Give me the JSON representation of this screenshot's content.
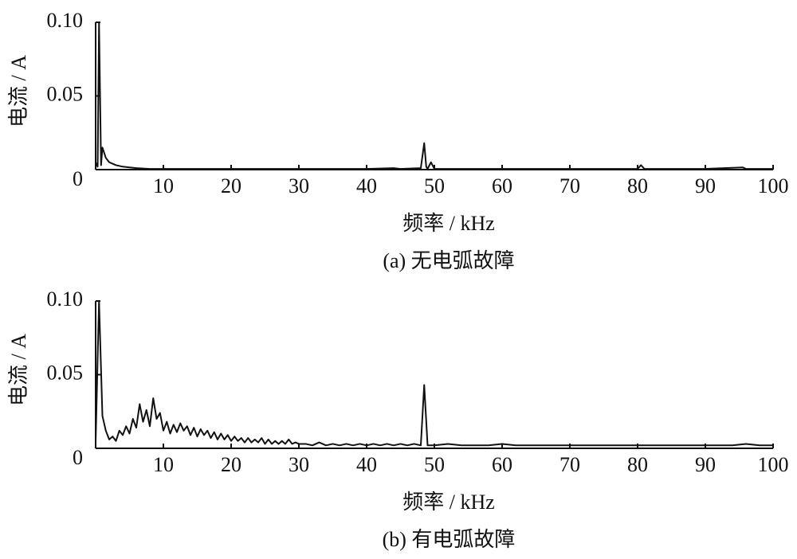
{
  "chart_data": [
    {
      "type": "line",
      "caption": "(a) 无电弧故障",
      "x_label": "频率 / kHz",
      "y_label": "电流 / A",
      "color": "#111111",
      "xlim": [
        0,
        100
      ],
      "ylim": [
        0,
        0.1
      ],
      "xticks": [
        10,
        20,
        30,
        40,
        50,
        60,
        70,
        80,
        90,
        100
      ],
      "yticks": [
        0,
        0.05,
        {
          "value": 0.1,
          "label": "0.10"
        }
      ],
      "x": [
        0,
        0.3,
        0.5,
        0.8,
        1,
        1.5,
        2,
        2.5,
        3,
        4,
        5,
        6,
        8,
        10,
        15,
        20,
        30,
        40,
        44,
        45,
        48,
        48.5,
        48.8,
        49,
        49.5,
        50,
        60,
        70,
        80,
        80.5,
        81,
        90,
        95.5,
        96,
        100
      ],
      "values": [
        0.005,
        0.002,
        0.1,
        0.003,
        0.015,
        0.008,
        0.005,
        0.004,
        0.003,
        0.002,
        0.0015,
        0.001,
        0.0005,
        0.0005,
        0.0005,
        0.0005,
        0.0005,
        0.0005,
        0.001,
        0.0005,
        0.001,
        0.018,
        0.002,
        0.0005,
        0.005,
        0.0005,
        0.0005,
        0.0005,
        0.0005,
        0.003,
        0.0005,
        0.0005,
        0.0015,
        0.0005,
        0.0005
      ]
    },
    {
      "type": "line",
      "caption": "(b) 有电弧故障",
      "x_label": "频率 / kHz",
      "y_label": "电流 / A",
      "color": "#111111",
      "xlim": [
        0,
        100
      ],
      "ylim": [
        0,
        0.1
      ],
      "xticks": [
        10,
        20,
        30,
        40,
        50,
        60,
        70,
        80,
        90,
        100
      ],
      "yticks": [
        0,
        0.05,
        {
          "value": 0.1,
          "label": "0.10"
        }
      ],
      "x": [
        0,
        0.5,
        1,
        1.5,
        2,
        2.5,
        3,
        3.5,
        4,
        4.5,
        5,
        5.5,
        6,
        6.5,
        7,
        7.5,
        8,
        8.5,
        9,
        9.5,
        10,
        10.5,
        11,
        11.5,
        12,
        12.5,
        13,
        13.5,
        14,
        14.5,
        15,
        15.5,
        16,
        16.5,
        17,
        17.5,
        18,
        18.5,
        19,
        19.5,
        20,
        20.5,
        21,
        21.5,
        22,
        22.5,
        23,
        23.5,
        24,
        24.5,
        25,
        25.5,
        26,
        26.5,
        27,
        27.5,
        28,
        28.5,
        29,
        29.5,
        30,
        31,
        32,
        33,
        34,
        35,
        36,
        37,
        38,
        39,
        40,
        41,
        42,
        43,
        44,
        45,
        46,
        47,
        48,
        48.5,
        49,
        50,
        52,
        54,
        56,
        58,
        60,
        62,
        64,
        66,
        68,
        70,
        72,
        74,
        76,
        78,
        80,
        82,
        84,
        86,
        88,
        90,
        92,
        94,
        96,
        98,
        100
      ],
      "values": [
        0.004,
        0.1,
        0.022,
        0.012,
        0.006,
        0.008,
        0.005,
        0.012,
        0.009,
        0.015,
        0.01,
        0.02,
        0.014,
        0.03,
        0.018,
        0.026,
        0.015,
        0.034,
        0.02,
        0.024,
        0.012,
        0.018,
        0.01,
        0.016,
        0.011,
        0.017,
        0.012,
        0.015,
        0.009,
        0.014,
        0.008,
        0.013,
        0.009,
        0.012,
        0.007,
        0.011,
        0.006,
        0.01,
        0.006,
        0.009,
        0.005,
        0.008,
        0.005,
        0.007,
        0.004,
        0.007,
        0.004,
        0.006,
        0.004,
        0.007,
        0.003,
        0.006,
        0.003,
        0.005,
        0.003,
        0.005,
        0.003,
        0.006,
        0.003,
        0.004,
        0.003,
        0.003,
        0.002,
        0.004,
        0.002,
        0.003,
        0.002,
        0.003,
        0.002,
        0.003,
        0.002,
        0.003,
        0.002,
        0.003,
        0.002,
        0.003,
        0.002,
        0.003,
        0.002,
        0.043,
        0.002,
        0.002,
        0.003,
        0.002,
        0.002,
        0.002,
        0.003,
        0.002,
        0.002,
        0.002,
        0.002,
        0.002,
        0.002,
        0.002,
        0.002,
        0.002,
        0.002,
        0.002,
        0.002,
        0.002,
        0.002,
        0.002,
        0.002,
        0.002,
        0.003,
        0.002,
        0.002
      ]
    }
  ]
}
